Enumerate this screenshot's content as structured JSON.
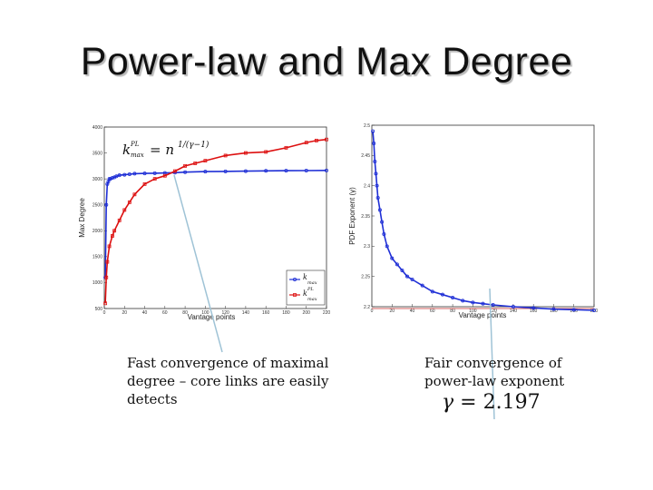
{
  "slide": {
    "title": "Power-law and Max Degree",
    "caption_left": "Fast convergence of maximal degree – core links are easily detects",
    "caption_right": "Fair convergence of power-law exponent",
    "gamma_symbol": "γ",
    "gamma_value": "= 2.197"
  },
  "chart_data": [
    {
      "type": "line",
      "xlabel": "Vantage points",
      "ylabel": "Max Degree",
      "xlim": [
        0,
        220
      ],
      "ylim": [
        500,
        4000
      ],
      "xticks": [
        "0",
        "20",
        "40",
        "60",
        "80",
        "100",
        "120",
        "140",
        "160",
        "180",
        "200",
        "220"
      ],
      "yticks": [
        "500",
        "1000",
        "1500",
        "2000",
        "2500",
        "3000",
        "3500",
        "4000"
      ],
      "annotation": {
        "main": "k",
        "sup": "PL",
        "sub": "max",
        "rhs": "= n",
        "exp": "1/(γ−1)"
      },
      "legend": {
        "placement": "bottom-right",
        "entries": [
          {
            "main": "k",
            "sub": "max",
            "sup": ""
          },
          {
            "main": "k",
            "sub": "max",
            "sup": "PL"
          }
        ]
      },
      "series": [
        {
          "color": "#1f2fd6",
          "x": [
            1,
            2,
            3,
            4,
            5,
            6,
            8,
            10,
            12,
            15,
            20,
            25,
            30,
            40,
            50,
            60,
            70,
            80,
            100,
            120,
            140,
            160,
            180,
            200,
            220
          ],
          "y": [
            1100,
            2500,
            2900,
            2950,
            3000,
            3000,
            3020,
            3030,
            3050,
            3070,
            3080,
            3090,
            3100,
            3105,
            3110,
            3115,
            3120,
            3130,
            3140,
            3145,
            3150,
            3155,
            3158,
            3160,
            3163
          ]
        },
        {
          "color": "#dd1010",
          "x": [
            1,
            2,
            3,
            5,
            8,
            10,
            15,
            20,
            25,
            30,
            40,
            50,
            60,
            70,
            80,
            90,
            100,
            120,
            140,
            160,
            180,
            200,
            210,
            220
          ],
          "y": [
            600,
            1100,
            1400,
            1700,
            1900,
            2000,
            2200,
            2400,
            2550,
            2700,
            2900,
            3000,
            3060,
            3150,
            3250,
            3300,
            3350,
            3450,
            3500,
            3520,
            3600,
            3700,
            3740,
            3760
          ]
        }
      ]
    },
    {
      "type": "line",
      "xlabel": "Vantage points",
      "ylabel": "PDF Exponent (γ)",
      "xlim": [
        0,
        220
      ],
      "ylim": [
        2.2,
        2.5
      ],
      "xticks": [
        "0",
        "20",
        "40",
        "60",
        "80",
        "100",
        "120",
        "140",
        "160",
        "180",
        "200",
        "220"
      ],
      "yticks": [
        "2.2",
        "2.25",
        "2.3",
        "2.35",
        "2.4",
        "2.45",
        "2.5"
      ],
      "reference_line": {
        "y": 2.197,
        "color": "#c9332f"
      },
      "series": [
        {
          "color": "#1f2fd6",
          "x": [
            1,
            2,
            3,
            4,
            5,
            6,
            8,
            10,
            12,
            15,
            20,
            25,
            30,
            35,
            40,
            50,
            60,
            70,
            80,
            90,
            100,
            110,
            120,
            140,
            160,
            180,
            200,
            220
          ],
          "y": [
            2.49,
            2.47,
            2.44,
            2.42,
            2.4,
            2.38,
            2.36,
            2.34,
            2.32,
            2.3,
            2.28,
            2.27,
            2.26,
            2.25,
            2.245,
            2.235,
            2.225,
            2.22,
            2.215,
            2.21,
            2.207,
            2.205,
            2.203,
            2.2,
            2.198,
            2.196,
            2.195,
            2.194
          ]
        }
      ]
    }
  ]
}
